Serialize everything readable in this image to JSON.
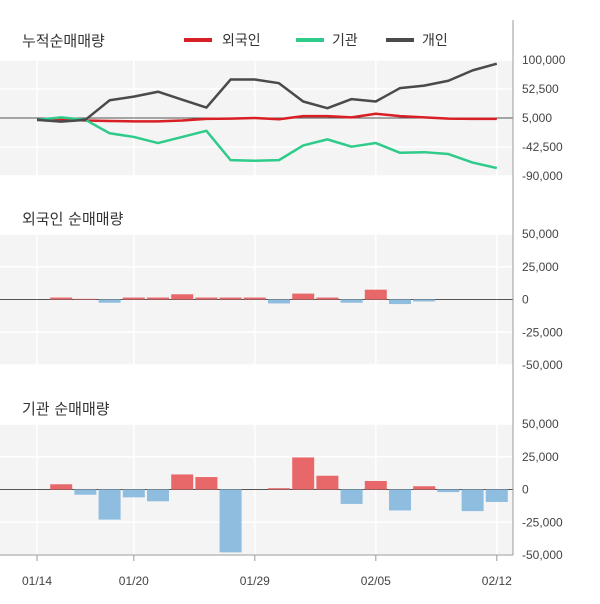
{
  "colors": {
    "foreign": "#d71f25",
    "institution": "#2ecb8a",
    "individual": "#4a4a4a",
    "bar_positive": "#e8686a",
    "bar_negative": "#8fbde0",
    "panel_bg": "#f4f4f4",
    "grid": "#ffffff",
    "axis": "#999999"
  },
  "legend": [
    {
      "key": "foreign",
      "label": "외국인"
    },
    {
      "key": "institution",
      "label": "기관"
    },
    {
      "key": "individual",
      "label": "개인"
    }
  ],
  "x_labels": [
    "01/14",
    "01/20",
    "01/29",
    "02/05",
    "02/12"
  ],
  "chart_data": [
    {
      "type": "line",
      "title": "누적순매매량",
      "ylim": [
        -90000,
        100000
      ],
      "yticks": [
        100000,
        52500,
        5000,
        -42500,
        -90000
      ],
      "ytick_labels": [
        "100,000",
        "52,500",
        "5,000",
        "-42,500",
        "-90,000"
      ],
      "x_index": [
        0,
        1,
        2,
        3,
        4,
        5,
        6,
        7,
        8,
        9,
        10,
        11,
        12,
        13,
        14,
        15,
        16,
        17,
        18,
        19
      ],
      "series": [
        {
          "key": "foreign",
          "name": "외국인",
          "values": [
            2000,
            3000,
            1000,
            0,
            -500,
            -500,
            1000,
            3500,
            4000,
            5000,
            3000,
            8000,
            8000,
            6000,
            12000,
            8000,
            6000,
            4000,
            3500,
            3500
          ]
        },
        {
          "key": "institution",
          "name": "기관",
          "values": [
            2000,
            6000,
            2000,
            -20000,
            -26000,
            -36000,
            -26000,
            -16000,
            -64000,
            -65000,
            -64000,
            -40000,
            -30000,
            -42000,
            -36000,
            -52000,
            -51000,
            -54000,
            -68000,
            -77000
          ]
        },
        {
          "key": "individual",
          "name": "개인",
          "values": [
            2000,
            -1000,
            2000,
            34000,
            40000,
            48000,
            35000,
            22000,
            68000,
            68000,
            62000,
            32000,
            21000,
            36000,
            32000,
            54000,
            58000,
            66000,
            83000,
            94000
          ]
        }
      ]
    },
    {
      "type": "bar",
      "title": "외국인 순매매량",
      "ylim": [
        -50000,
        50000
      ],
      "yticks": [
        50000,
        25000,
        0,
        -25000,
        -50000
      ],
      "ytick_labels": [
        "50,000",
        "25,000",
        "0",
        "-25,000",
        "-50,000"
      ],
      "x_index": [
        1,
        2,
        3,
        4,
        5,
        6,
        7,
        8,
        9,
        10,
        11,
        12,
        13,
        14,
        15,
        16,
        17,
        18,
        19
      ],
      "values": [
        1500,
        500,
        -2500,
        1500,
        1500,
        4000,
        1500,
        1500,
        1500,
        -3000,
        4500,
        1500,
        -2500,
        7500,
        -3500,
        -1500,
        0,
        0,
        0
      ]
    },
    {
      "type": "bar",
      "title": "기관 순매매량",
      "ylim": [
        -50000,
        50000
      ],
      "yticks": [
        50000,
        25000,
        0,
        -25000,
        -50000
      ],
      "ytick_labels": [
        "50,000",
        "25,000",
        "0",
        "-25,000",
        "-50,000"
      ],
      "x_index": [
        1,
        2,
        3,
        4,
        5,
        6,
        7,
        8,
        9,
        10,
        11,
        12,
        13,
        14,
        15,
        16,
        17,
        18,
        19
      ],
      "values": [
        4000,
        -4000,
        -23000,
        -6000,
        -9000,
        11500,
        9500,
        -48000,
        0,
        1000,
        24500,
        10500,
        -11000,
        6500,
        -16000,
        2500,
        -2000,
        -16500,
        -9500
      ]
    }
  ]
}
